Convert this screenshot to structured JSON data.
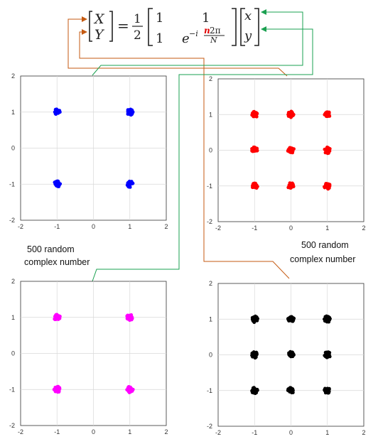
{
  "equation": {
    "lhs": [
      "X",
      "Y"
    ],
    "equals": "=",
    "coef_num": "1",
    "coef_den": "2",
    "m11": "1",
    "m12": "1",
    "m21": "1",
    "m22_base": "e",
    "m22_sign": "−i",
    "m22_n": "n",
    "m22_num": "2π",
    "m22_den": "N",
    "rhs": [
      "x",
      "y"
    ]
  },
  "captions": {
    "left_l1": "500 random",
    "left_l2": "complex number",
    "right_l1": "500 random",
    "right_l2": "complex number"
  },
  "colors": {
    "blue": "#0000ff",
    "red": "#ff0000",
    "magenta": "#ff00ff",
    "black": "#000000",
    "arrow_orange": "#c55a11",
    "arrow_green": "#1aa050",
    "n_highlight": "#e00000"
  },
  "chart_data": [
    {
      "type": "scatter",
      "points_per_cluster_note": "",
      "xlim": [
        -2,
        2
      ],
      "ylim": [
        -2,
        2
      ],
      "xticks": [
        "-2",
        "-1",
        "0",
        "1",
        "2"
      ],
      "yticks": [
        "-2",
        "-1",
        "0",
        "1",
        "2"
      ],
      "grid": true,
      "color": "#0000ff",
      "clusters": [
        [
          -1,
          1
        ],
        [
          1,
          1
        ],
        [
          -1,
          -1
        ],
        [
          1,
          -1
        ]
      ]
    },
    {
      "type": "scatter",
      "xlim": [
        -2,
        2
      ],
      "ylim": [
        -2,
        2
      ],
      "xticks": [
        "-2",
        "-1",
        "0",
        "1",
        "2"
      ],
      "yticks": [
        "-2",
        "-1",
        "0",
        "1",
        "2"
      ],
      "grid": true,
      "color": "#ff0000",
      "clusters": [
        [
          -1,
          1
        ],
        [
          0,
          1
        ],
        [
          1,
          1
        ],
        [
          -1,
          0
        ],
        [
          0,
          0
        ],
        [
          1,
          0
        ],
        [
          -1,
          -1
        ],
        [
          0,
          -1
        ],
        [
          1,
          -1
        ]
      ]
    },
    {
      "type": "scatter",
      "xlim": [
        -2,
        2
      ],
      "ylim": [
        -2,
        2
      ],
      "xticks": [
        "-2",
        "-1",
        "0",
        "1",
        "2"
      ],
      "yticks": [
        "-2",
        "-1",
        "0",
        "1",
        "2"
      ],
      "grid": true,
      "color": "#ff00ff",
      "clusters": [
        [
          -1,
          1
        ],
        [
          1,
          1
        ],
        [
          -1,
          -1
        ],
        [
          1,
          -1
        ]
      ]
    },
    {
      "type": "scatter",
      "xlim": [
        -2,
        2
      ],
      "ylim": [
        -2,
        2
      ],
      "xticks": [
        "-2",
        "-1",
        "0",
        "1",
        "2"
      ],
      "yticks": [
        "-2",
        "-1",
        "0",
        "1",
        "2"
      ],
      "grid": true,
      "color": "#000000",
      "clusters": [
        [
          -1,
          1
        ],
        [
          0,
          1
        ],
        [
          1,
          1
        ],
        [
          -1,
          0
        ],
        [
          0,
          0
        ],
        [
          1,
          0
        ],
        [
          -1,
          -1
        ],
        [
          0,
          -1
        ],
        [
          1,
          -1
        ]
      ]
    }
  ]
}
